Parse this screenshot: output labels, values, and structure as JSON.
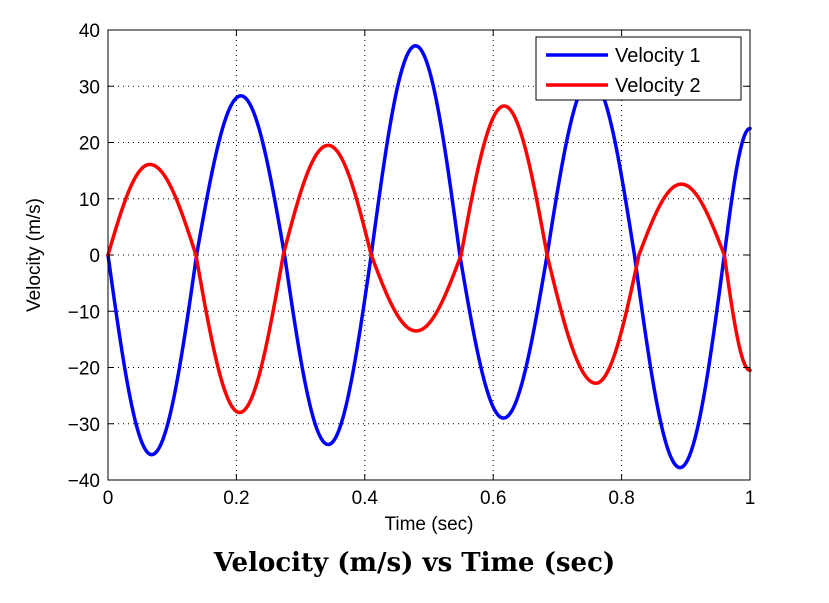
{
  "caption": "Velocity (m/s) vs Time (sec)",
  "chart_data": {
    "type": "line",
    "title": "",
    "xlabel": "Time (sec)",
    "ylabel": "Velocity (m/s)",
    "xlim": [
      0,
      1
    ],
    "ylim": [
      -40,
      40
    ],
    "xticks": [
      0,
      0.2,
      0.4,
      0.6,
      0.8,
      1
    ],
    "xtick_labels": [
      "0",
      "0.2",
      "0.4",
      "0.6",
      "0.8",
      "1"
    ],
    "yticks": [
      -40,
      -30,
      -20,
      -10,
      0,
      10,
      20,
      30,
      40
    ],
    "ytick_labels": [
      "−40",
      "−30",
      "−20",
      "−10",
      "0",
      "10",
      "20",
      "30",
      "40"
    ],
    "grid": true,
    "legend": "top-right",
    "series": [
      {
        "name": "Velocity 1",
        "color": "#0000ff",
        "x": [
          0,
          0.068,
          0.138,
          0.207,
          0.275,
          0.343,
          0.41,
          0.479,
          0.548,
          0.616,
          0.684,
          0.752,
          0.82,
          0.891,
          0.96,
          1.0
        ],
        "y": [
          0,
          -35.5,
          0,
          28.3,
          0,
          -33.7,
          0,
          37.2,
          0,
          -29.0,
          0,
          31.3,
          0,
          -37.8,
          0,
          22.5
        ]
      },
      {
        "name": "Velocity 2",
        "color": "#ff0000",
        "x": [
          0,
          0.065,
          0.137,
          0.205,
          0.273,
          0.343,
          0.41,
          0.48,
          0.55,
          0.617,
          0.684,
          0.76,
          0.827,
          0.893,
          0.96,
          1.0
        ],
        "y": [
          0,
          16.1,
          0,
          -28.0,
          0,
          19.5,
          0,
          -13.5,
          0,
          26.5,
          0,
          -22.8,
          0,
          12.6,
          0,
          -20.5
        ]
      }
    ]
  }
}
